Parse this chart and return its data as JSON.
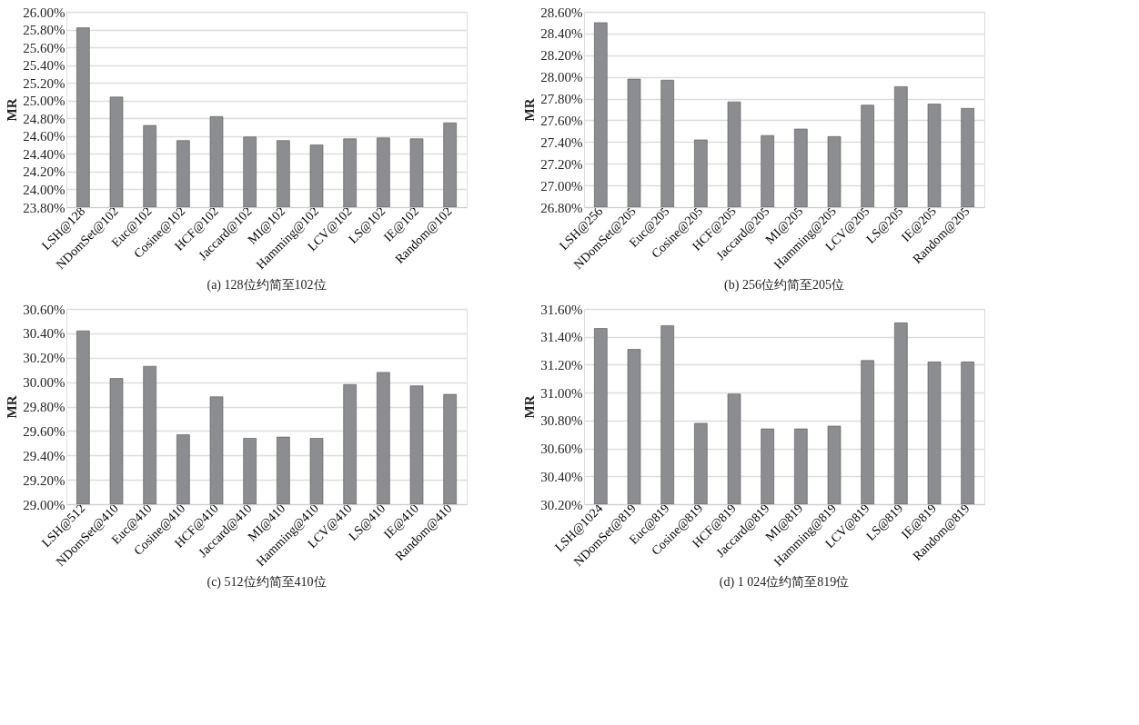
{
  "chart_data": [
    {
      "type": "bar",
      "title": "(a) 128位约简至102位",
      "ylabel": "MR",
      "color": "#8c8d90",
      "grid": "y",
      "categories": [
        "LSH@128",
        "NDomSet@102",
        "Euc@102",
        "Cosine@102",
        "HCF@102",
        "Jaccard@102",
        "MI@102",
        "Hamming@102",
        "LCV@102",
        "LS@102",
        "IE@102",
        "Random@102"
      ],
      "values": [
        25.82,
        25.04,
        24.72,
        24.55,
        24.82,
        24.59,
        24.55,
        24.5,
        24.57,
        24.58,
        24.57,
        24.75
      ],
      "ylim": [
        23.8,
        26.0
      ],
      "yticks": [
        {
          "value": 23.8,
          "label": "23.80%"
        },
        {
          "value": 24.0,
          "label": "24.00%"
        },
        {
          "value": 24.2,
          "label": "24.20%"
        },
        {
          "value": 24.4,
          "label": "24.40%"
        },
        {
          "value": 24.6,
          "label": "24.60%"
        },
        {
          "value": 24.8,
          "label": "24.80%"
        },
        {
          "value": 25.0,
          "label": "25.00%"
        },
        {
          "value": 25.2,
          "label": "25.20%"
        },
        {
          "value": 25.4,
          "label": "25.40%"
        },
        {
          "value": 25.6,
          "label": "25.60%"
        },
        {
          "value": 25.8,
          "label": "25.80%"
        },
        {
          "value": 26.0,
          "label": "26.00%"
        }
      ]
    },
    {
      "type": "bar",
      "title": "(b) 256位约简至205位",
      "ylabel": "MR",
      "color": "#8c8d90",
      "grid": "y",
      "categories": [
        "LSH@256",
        "NDomSet@205",
        "Euc@205",
        "Cosine@205",
        "HCF@205",
        "Jaccard@205",
        "MI@205",
        "Hamming@205",
        "LCV@205",
        "LS@205",
        "IE@205",
        "Random@205"
      ],
      "values": [
        28.5,
        27.98,
        27.97,
        27.42,
        27.77,
        27.46,
        27.52,
        27.45,
        27.74,
        27.91,
        27.75,
        27.71
      ],
      "ylim": [
        26.8,
        28.6
      ],
      "yticks": [
        {
          "value": 26.8,
          "label": "26.80%"
        },
        {
          "value": 27.0,
          "label": "27.00%"
        },
        {
          "value": 27.2,
          "label": "27.20%"
        },
        {
          "value": 27.4,
          "label": "27.40%"
        },
        {
          "value": 27.6,
          "label": "27.60%"
        },
        {
          "value": 27.8,
          "label": "27.80%"
        },
        {
          "value": 28.0,
          "label": "28.00%"
        },
        {
          "value": 28.2,
          "label": "28.20%"
        },
        {
          "value": 28.4,
          "label": "28.40%"
        },
        {
          "value": 28.6,
          "label": "28.60%"
        }
      ]
    },
    {
      "type": "bar",
      "title": "(c) 512位约简至410位",
      "ylabel": "MR",
      "color": "#8c8d90",
      "grid": "y",
      "categories": [
        "LSH@512",
        "NDomSet@410",
        "Euc@410",
        "Cosine@410",
        "HCF@410",
        "Jaccard@410",
        "MI@410",
        "Hamming@410",
        "LCV@410",
        "LS@410",
        "IE@410",
        "Random@410"
      ],
      "values": [
        30.42,
        30.03,
        30.13,
        29.57,
        29.88,
        29.54,
        29.55,
        29.54,
        29.98,
        30.08,
        29.97,
        29.9
      ],
      "ylim": [
        29.0,
        30.6
      ],
      "yticks": [
        {
          "value": 29.0,
          "label": "29.00%"
        },
        {
          "value": 29.2,
          "label": "29.20%"
        },
        {
          "value": 29.4,
          "label": "29.40%"
        },
        {
          "value": 29.6,
          "label": "29.60%"
        },
        {
          "value": 29.8,
          "label": "29.80%"
        },
        {
          "value": 30.0,
          "label": "30.00%"
        },
        {
          "value": 30.2,
          "label": "30.20%"
        },
        {
          "value": 30.4,
          "label": "30.40%"
        },
        {
          "value": 30.6,
          "label": "30.60%"
        }
      ]
    },
    {
      "type": "bar",
      "title": "(d) 1 024位约简至819位",
      "ylabel": "MR",
      "color": "#8c8d90",
      "grid": "y",
      "categories": [
        "LSH@1024",
        "NDomSet@819",
        "Euc@819",
        "Cosine@819",
        "HCF@819",
        "Jaccard@819",
        "MI@819",
        "Hamming@819",
        "LCV@819",
        "LS@819",
        "IE@819",
        "Random@819"
      ],
      "values": [
        31.46,
        31.31,
        31.48,
        30.78,
        30.99,
        30.74,
        30.74,
        30.76,
        31.23,
        31.5,
        31.22,
        31.22
      ],
      "ylim": [
        30.2,
        31.6
      ],
      "yticks": [
        {
          "value": 30.2,
          "label": "30.20%"
        },
        {
          "value": 30.4,
          "label": "30.40%"
        },
        {
          "value": 30.6,
          "label": "30.60%"
        },
        {
          "value": 30.8,
          "label": "30.80%"
        },
        {
          "value": 31.0,
          "label": "31.00%"
        },
        {
          "value": 31.2,
          "label": "31.20%"
        },
        {
          "value": 31.4,
          "label": "31.40%"
        },
        {
          "value": 31.6,
          "label": "31.60%"
        }
      ]
    }
  ]
}
